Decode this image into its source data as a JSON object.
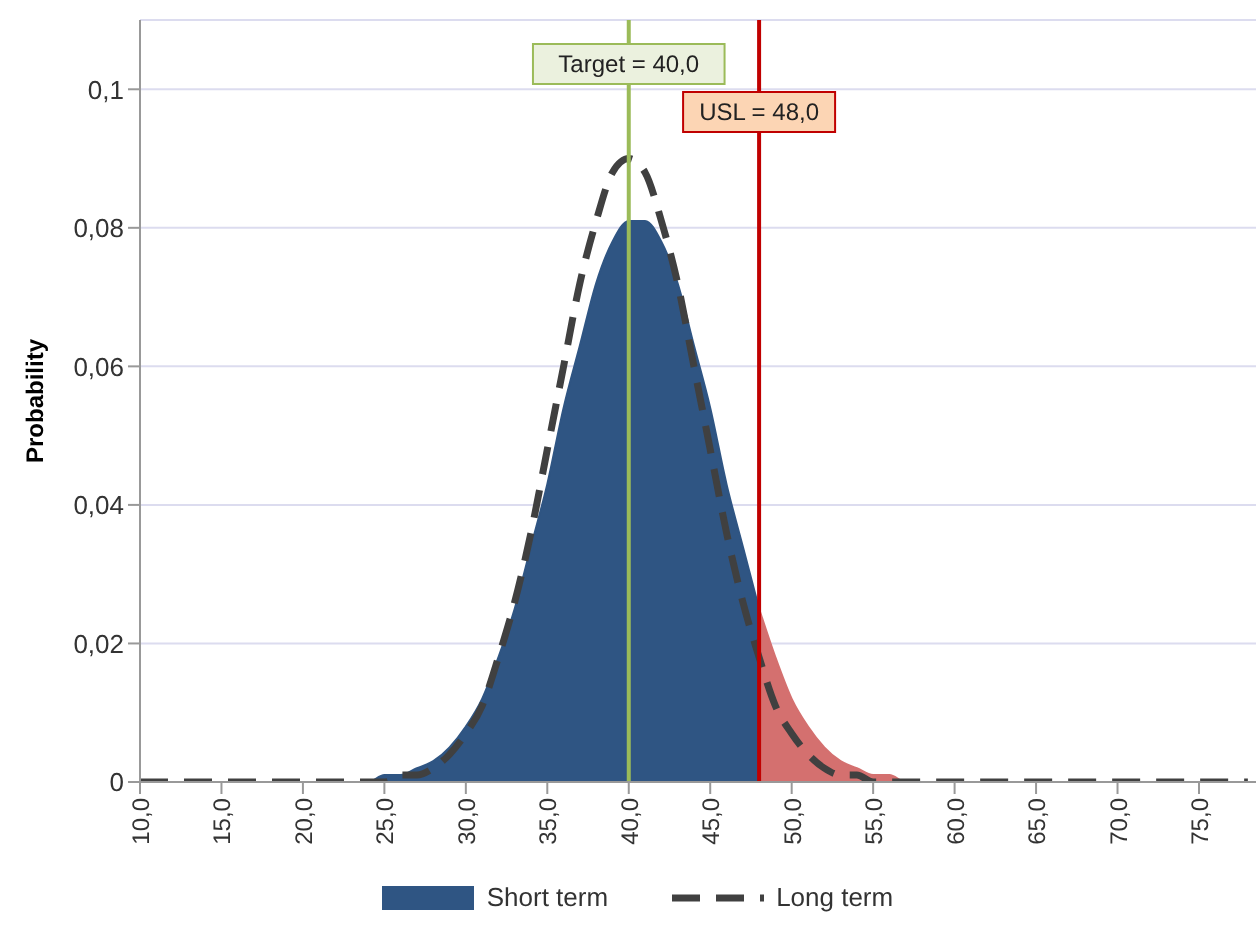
{
  "chart_data": {
    "type": "area",
    "ylabel": "Probability",
    "x": [
      10,
      15,
      20,
      24,
      25,
      26,
      27,
      28,
      29,
      30,
      31,
      32,
      33,
      34,
      35,
      36,
      37,
      38,
      39,
      40,
      41,
      42,
      43,
      44,
      45,
      46,
      47,
      48,
      49,
      50,
      51,
      52,
      53,
      54,
      55,
      56,
      57,
      58,
      60,
      65,
      70,
      75,
      78
    ],
    "series": [
      {
        "name": "Short term",
        "color": "#2f5583",
        "values": [
          0,
          0,
          0,
          0,
          0.001,
          0.001,
          0.002,
          0.003,
          0.005,
          0.008,
          0.012,
          0.018,
          0.025,
          0.034,
          0.043,
          0.054,
          0.063,
          0.072,
          0.078,
          0.081,
          0.081,
          0.078,
          0.072,
          0.063,
          0.054,
          0.043,
          0.034,
          0.025,
          null,
          null,
          null,
          null,
          null,
          null,
          null,
          null,
          null,
          null,
          null,
          null,
          null,
          null,
          null
        ]
      },
      {
        "color": "#d4706f",
        "values": [
          null,
          null,
          null,
          null,
          null,
          null,
          null,
          null,
          null,
          null,
          null,
          null,
          null,
          null,
          null,
          null,
          null,
          null,
          null,
          null,
          null,
          null,
          null,
          null,
          null,
          null,
          null,
          0.025,
          0.018,
          0.012,
          0.008,
          0.005,
          0.003,
          0.002,
          0.001,
          0.001,
          0,
          0,
          null,
          null,
          null,
          null,
          null
        ]
      },
      {
        "name": "Long term",
        "type": "line",
        "color": "#404040",
        "line_style": "dashed",
        "values": [
          0,
          0,
          0,
          0,
          0,
          0.001,
          0.001,
          0.002,
          0.004,
          0.007,
          0.011,
          0.018,
          0.026,
          0.036,
          0.048,
          0.06,
          0.072,
          0.081,
          0.088,
          0.09,
          0.088,
          0.081,
          0.072,
          0.06,
          0.048,
          0.036,
          0.026,
          0.018,
          0.011,
          0.007,
          0.004,
          0.002,
          0.001,
          0.001,
          0,
          0,
          0,
          0,
          0,
          0,
          0,
          0,
          0
        ]
      }
    ],
    "xlim": [
      10,
      78.5
    ],
    "xticks": [
      {
        "value": 10,
        "label": "10,0"
      },
      {
        "value": 15,
        "label": "15,0"
      },
      {
        "value": 20,
        "label": "20,0"
      },
      {
        "value": 25,
        "label": "25,0"
      },
      {
        "value": 30,
        "label": "30,0"
      },
      {
        "value": 35,
        "label": "35,0"
      },
      {
        "value": 40,
        "label": "40,0"
      },
      {
        "value": 45,
        "label": "45,0"
      },
      {
        "value": 50,
        "label": "50,0"
      },
      {
        "value": 55,
        "label": "55,0"
      },
      {
        "value": 60,
        "label": "60,0"
      },
      {
        "value": 65,
        "label": "65,0"
      },
      {
        "value": 70,
        "label": "70,0"
      },
      {
        "value": 75,
        "label": "75,0"
      }
    ],
    "ylim": [
      0,
      0.11
    ],
    "yticks": [
      0,
      {
        "value": 0.02,
        "label": "0,02"
      },
      {
        "value": 0.04,
        "label": "0,04"
      },
      {
        "value": 0.06,
        "label": "0,06"
      },
      {
        "value": 0.08,
        "label": "0,08"
      },
      {
        "value": 0.1,
        "label": "0,1"
      }
    ],
    "ref_lines": [
      {
        "axis": "x",
        "value": 40,
        "label": "Target = 40,0",
        "color": "#9bbb59"
      },
      {
        "axis": "x",
        "value": 48,
        "label": "USL = 48,0",
        "color": "#c00000"
      }
    ],
    "grid": "y",
    "legend": "bottom"
  }
}
